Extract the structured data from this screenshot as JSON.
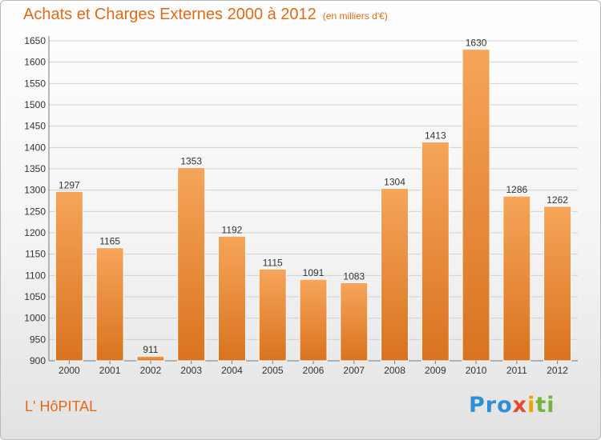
{
  "chart_data": {
    "type": "bar",
    "title": "Achats et Charges Externes 2000 à 2012",
    "subtitle": "(en milliers d'€)",
    "xlabel": "",
    "ylabel": "",
    "categories": [
      "2000",
      "2001",
      "2002",
      "2003",
      "2004",
      "2005",
      "2006",
      "2007",
      "2008",
      "2009",
      "2010",
      "2011",
      "2012"
    ],
    "values": [
      1297,
      1165,
      911,
      1353,
      1192,
      1115,
      1091,
      1083,
      1304,
      1413,
      1630,
      1286,
      1262
    ],
    "ylim": [
      900,
      1650
    ],
    "yticks": [
      900,
      950,
      1000,
      1050,
      1100,
      1150,
      1200,
      1250,
      1300,
      1350,
      1400,
      1450,
      1500,
      1550,
      1600,
      1650
    ],
    "grid": true,
    "legend": "none",
    "bar_color_top": "#f6a55a",
    "bar_color_bottom": "#d9731f"
  },
  "footer": {
    "commune": "L' HôPITAL",
    "logo": [
      "Pro",
      "x",
      "i",
      "ti"
    ]
  }
}
